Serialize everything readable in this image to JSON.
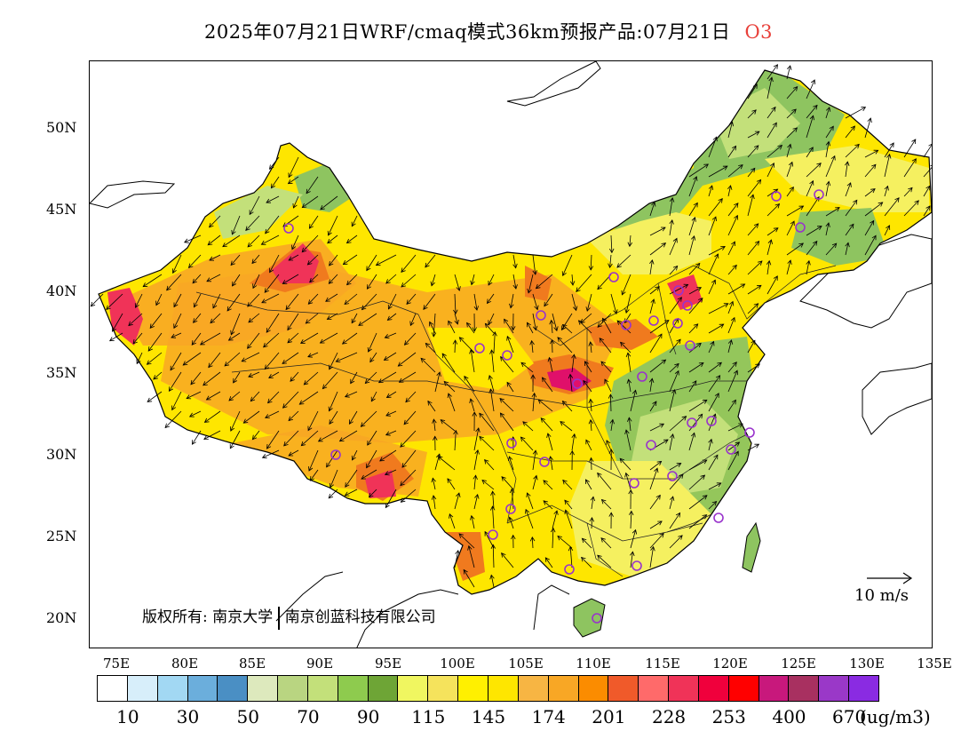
{
  "title": "2025年07月21日WRF/cmaq模式36km预报产品:07月21日",
  "species": "O3",
  "lat_labels": [
    "50N",
    "45N",
    "40N",
    "35N",
    "30N",
    "25N",
    "20N"
  ],
  "lon_labels": [
    "75E",
    "80E",
    "85E",
    "90E",
    "95E",
    "100E",
    "105E",
    "110E",
    "115E",
    "120E",
    "125E",
    "130E",
    "135E"
  ],
  "copyright": {
    "prefix": "版权所有:",
    "org1": "南京大学",
    "org2": "南京创蓝科技有限公司"
  },
  "wind_reference": "10 m/s",
  "colorbar": {
    "colors": [
      "#ffffff",
      "#d7eefa",
      "#a2d8f3",
      "#6baedc",
      "#4a8fc4",
      "#dde9bd",
      "#b9d581",
      "#c3e07a",
      "#8ecb4e",
      "#6ea536",
      "#f0f660",
      "#f5e35c",
      "#fff000",
      "#fee600",
      "#f7b543",
      "#f8a725",
      "#fb8c00",
      "#f05a2a",
      "#ff6a6a",
      "#f03358",
      "#f0003c",
      "#ff0000",
      "#c8187c",
      "#a83060",
      "#9a38c8",
      "#8a2be2"
    ],
    "labels": [
      "10",
      "30",
      "50",
      "70",
      "90",
      "115",
      "145",
      "174",
      "201",
      "228",
      "253",
      "400",
      "670"
    ],
    "unit": "(ug/m3)"
  },
  "concentration_colors": {
    "green": "#8ec460",
    "light_green": "#c3e07a",
    "yellow": "#f5f060",
    "deep_yellow": "#ffe600",
    "orange": "#f8a725",
    "dark_orange": "#f07a1e",
    "red": "#f03358",
    "magenta": "#e0106a"
  },
  "site_marker_color": "#9933cc"
}
